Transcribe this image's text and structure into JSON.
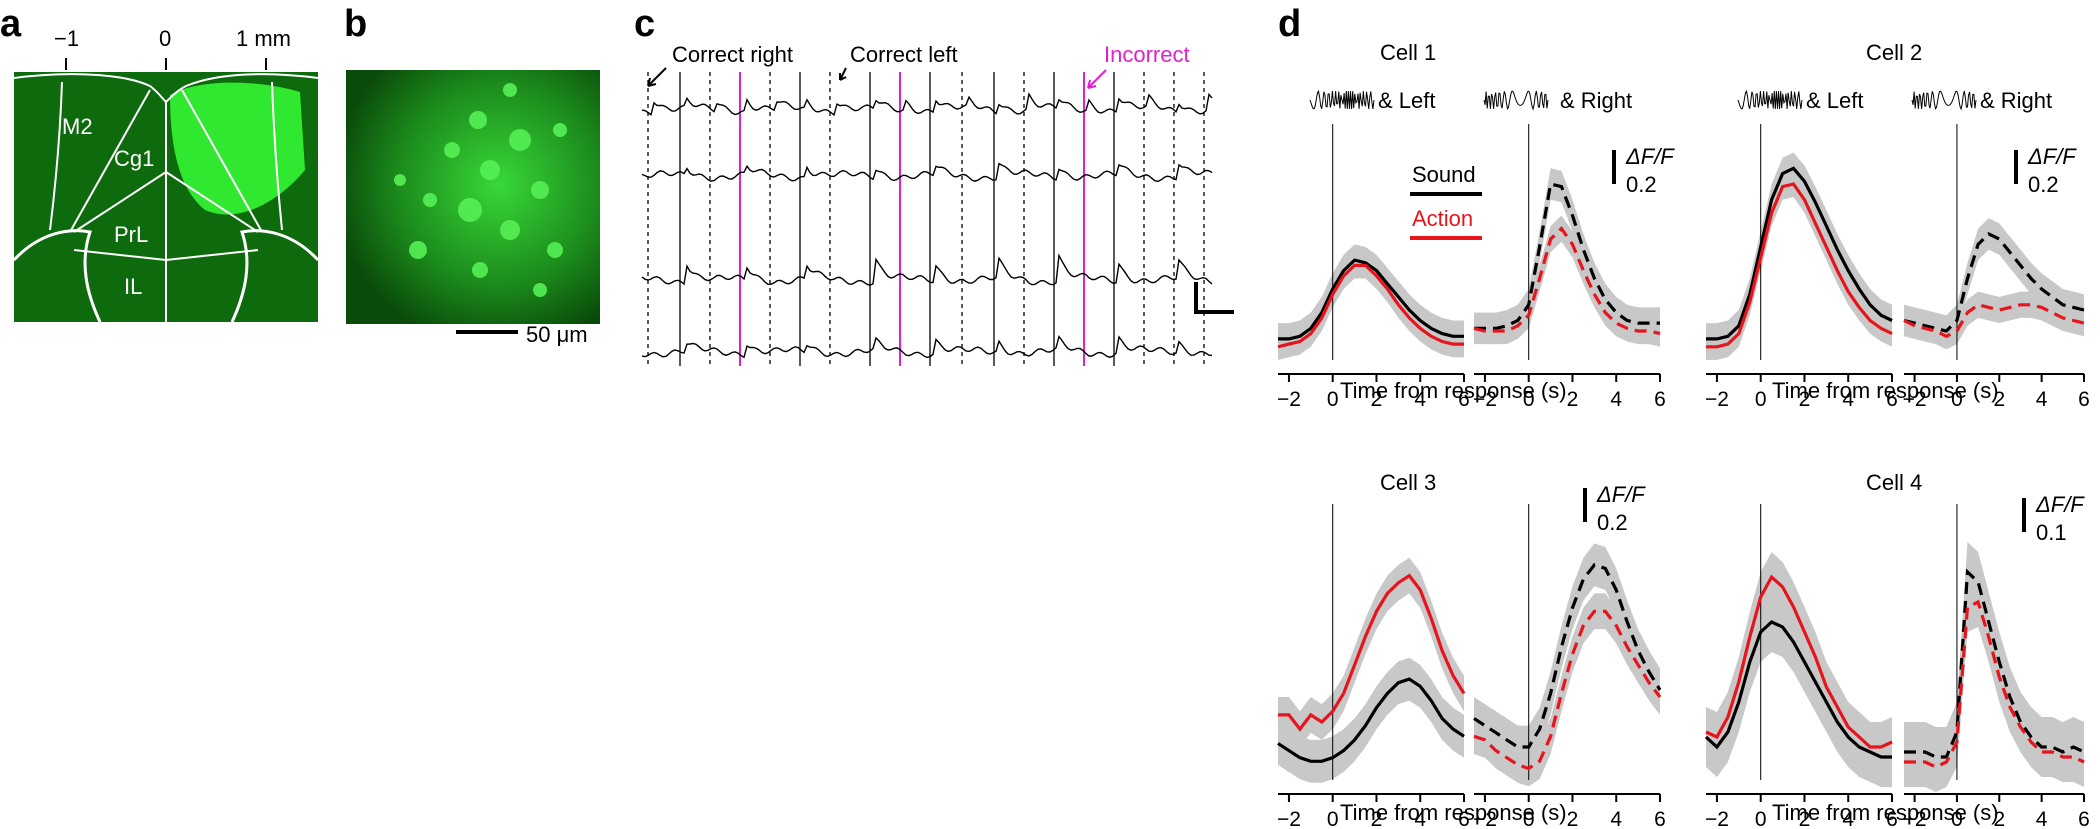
{
  "panels": {
    "a": {
      "label": "a",
      "scale_labels": [
        "−1",
        "0",
        "1 mm"
      ],
      "regions": [
        "M2",
        "Cg1",
        "PrL",
        "IL"
      ]
    },
    "b": {
      "label": "b",
      "scalebar_label": "50 μm"
    },
    "c": {
      "label": "c",
      "annotations": {
        "correct_right": "Correct right",
        "correct_left": "Correct left",
        "incorrect": "Incorrect"
      },
      "colors": {
        "incorrect": "#e020d0",
        "trace": "#000000"
      }
    },
    "d": {
      "label": "d",
      "xlabel": "Time from response (s)",
      "x_ticks": [
        "−2",
        "0",
        "2",
        "4",
        "6"
      ],
      "legend": {
        "sound": "Sound",
        "action": "Action"
      },
      "stim_labels": {
        "left": "& Left",
        "right": "& Right"
      },
      "colors": {
        "sound": "#000000",
        "action": "#e8141c",
        "sem": "#c8c8c8"
      }
    }
  },
  "chart_data": [
    {
      "type": "line",
      "title": "Cell 1",
      "scale_label": "0.2",
      "scale_unit": "ΔF/F",
      "x": [
        -2.5,
        -2,
        -1.5,
        -1,
        -0.5,
        0,
        0.5,
        1,
        1.5,
        2,
        2.5,
        3,
        3.5,
        4,
        4.5,
        5,
        5.5,
        6
      ],
      "series": [
        {
          "name": "Sound",
          "condition": "Left",
          "values": [
            0.05,
            0.05,
            0.06,
            0.09,
            0.15,
            0.24,
            0.31,
            0.35,
            0.34,
            0.31,
            0.26,
            0.21,
            0.16,
            0.12,
            0.09,
            0.07,
            0.06,
            0.06
          ]
        },
        {
          "name": "Action",
          "condition": "Left",
          "values": [
            0.02,
            0.03,
            0.04,
            0.07,
            0.13,
            0.22,
            0.29,
            0.33,
            0.33,
            0.29,
            0.24,
            0.18,
            0.13,
            0.09,
            0.06,
            0.04,
            0.03,
            0.03
          ]
        },
        {
          "name": "Sound",
          "condition": "Right",
          "values": [
            0.09,
            0.09,
            0.09,
            0.1,
            0.12,
            0.18,
            0.4,
            0.64,
            0.63,
            0.52,
            0.39,
            0.28,
            0.2,
            0.15,
            0.12,
            0.11,
            0.11,
            0.11
          ]
        },
        {
          "name": "Action",
          "condition": "Right",
          "values": [
            0.09,
            0.08,
            0.08,
            0.08,
            0.1,
            0.14,
            0.28,
            0.43,
            0.47,
            0.41,
            0.31,
            0.22,
            0.15,
            0.11,
            0.09,
            0.08,
            0.08,
            0.07
          ]
        }
      ]
    },
    {
      "type": "line",
      "title": "Cell 2",
      "scale_label": "0.2",
      "scale_unit": "ΔF/F",
      "x": [
        -2.5,
        -2,
        -1.5,
        -1,
        -0.5,
        0,
        0.5,
        1,
        1.5,
        2,
        2.5,
        3,
        3.5,
        4,
        4.5,
        5,
        5.5,
        6
      ],
      "series": [
        {
          "name": "Sound",
          "condition": "Left",
          "values": [
            0.05,
            0.05,
            0.06,
            0.1,
            0.22,
            0.4,
            0.58,
            0.68,
            0.7,
            0.65,
            0.57,
            0.48,
            0.39,
            0.31,
            0.24,
            0.18,
            0.14,
            0.12
          ]
        },
        {
          "name": "Action",
          "condition": "Left",
          "values": [
            0.02,
            0.02,
            0.03,
            0.07,
            0.19,
            0.36,
            0.53,
            0.63,
            0.64,
            0.58,
            0.49,
            0.4,
            0.31,
            0.23,
            0.17,
            0.12,
            0.09,
            0.07
          ]
        },
        {
          "name": "Sound",
          "condition": "Right",
          "values": [
            0.12,
            0.11,
            0.1,
            0.09,
            0.08,
            0.12,
            0.28,
            0.41,
            0.45,
            0.43,
            0.38,
            0.33,
            0.28,
            0.24,
            0.21,
            0.18,
            0.17,
            0.16
          ]
        },
        {
          "name": "Action",
          "condition": "Right",
          "values": [
            0.12,
            0.1,
            0.09,
            0.08,
            0.06,
            0.08,
            0.15,
            0.18,
            0.17,
            0.16,
            0.17,
            0.18,
            0.18,
            0.17,
            0.15,
            0.13,
            0.12,
            0.11
          ]
        }
      ]
    },
    {
      "type": "line",
      "title": "Cell 3",
      "scale_label": "0.2",
      "scale_unit": "ΔF/F",
      "x": [
        -2.5,
        -2,
        -1.5,
        -1,
        -0.5,
        0,
        0.5,
        1,
        1.5,
        2,
        2.5,
        3,
        3.5,
        4,
        4.5,
        5,
        5.5,
        6
      ],
      "series": [
        {
          "name": "Sound",
          "condition": "Left",
          "values": [
            0.08,
            0.06,
            0.04,
            0.03,
            0.03,
            0.04,
            0.06,
            0.09,
            0.13,
            0.18,
            0.22,
            0.25,
            0.26,
            0.24,
            0.2,
            0.15,
            0.12,
            0.1
          ]
        },
        {
          "name": "Action",
          "condition": "Left",
          "values": [
            0.16,
            0.16,
            0.12,
            0.16,
            0.14,
            0.17,
            0.22,
            0.3,
            0.38,
            0.45,
            0.5,
            0.53,
            0.55,
            0.51,
            0.43,
            0.34,
            0.27,
            0.22
          ]
        },
        {
          "name": "Sound",
          "condition": "Right",
          "values": [
            0.15,
            0.13,
            0.11,
            0.09,
            0.07,
            0.07,
            0.12,
            0.22,
            0.35,
            0.46,
            0.54,
            0.58,
            0.57,
            0.51,
            0.42,
            0.34,
            0.28,
            0.23
          ]
        },
        {
          "name": "Action",
          "condition": "Right",
          "values": [
            0.1,
            0.09,
            0.06,
            0.04,
            0.02,
            0.01,
            0.03,
            0.1,
            0.22,
            0.33,
            0.41,
            0.45,
            0.45,
            0.41,
            0.35,
            0.3,
            0.25,
            0.21
          ]
        }
      ]
    },
    {
      "type": "line",
      "title": "Cell 4",
      "scale_label": "0.1",
      "scale_unit": "ΔF/F",
      "x": [
        -2.5,
        -2,
        -1.5,
        -1,
        -0.5,
        0,
        0.5,
        1,
        1.5,
        2,
        2.5,
        3,
        3.5,
        4,
        4.5,
        5,
        5.5,
        6
      ],
      "series": [
        {
          "name": "Sound",
          "condition": "Left",
          "values": [
            0.07,
            0.05,
            0.08,
            0.14,
            0.22,
            0.28,
            0.3,
            0.29,
            0.26,
            0.22,
            0.18,
            0.14,
            0.1,
            0.07,
            0.05,
            0.04,
            0.03,
            0.03
          ]
        },
        {
          "name": "Action",
          "condition": "Left",
          "values": [
            0.08,
            0.07,
            0.11,
            0.18,
            0.27,
            0.35,
            0.39,
            0.37,
            0.33,
            0.28,
            0.23,
            0.17,
            0.13,
            0.09,
            0.07,
            0.05,
            0.05,
            0.06
          ]
        },
        {
          "name": "Sound",
          "condition": "Right",
          "values": [
            0.04,
            0.04,
            0.04,
            0.03,
            0.03,
            0.08,
            0.4,
            0.38,
            0.3,
            0.22,
            0.15,
            0.1,
            0.07,
            0.05,
            0.05,
            0.04,
            0.05,
            0.04
          ]
        },
        {
          "name": "Action",
          "condition": "Right",
          "values": [
            0.02,
            0.02,
            0.02,
            0.01,
            0.02,
            0.06,
            0.33,
            0.34,
            0.27,
            0.19,
            0.13,
            0.09,
            0.06,
            0.04,
            0.04,
            0.03,
            0.03,
            0.02
          ]
        }
      ]
    }
  ]
}
